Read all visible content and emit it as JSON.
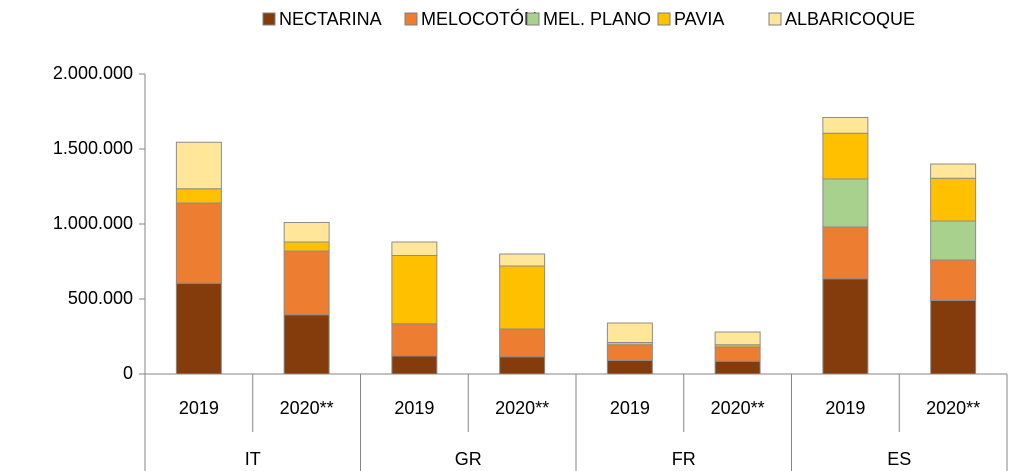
{
  "chart_data": {
    "type": "bar",
    "stacked": true,
    "categories": [
      "2019",
      "2020**",
      "2019",
      "2020**",
      "2019",
      "2020**",
      "2019",
      "2020**"
    ],
    "groups": [
      "IT",
      "GR",
      "FR",
      "ES"
    ],
    "series": [
      {
        "name": "NECTARINA",
        "color": "#843c0c",
        "values": [
          605000,
          395000,
          120000,
          115000,
          90000,
          85000,
          635000,
          490000
        ]
      },
      {
        "name": "MELOCOTÓN",
        "color": "#ed7d31",
        "values": [
          535000,
          425000,
          215000,
          185000,
          105000,
          95000,
          345000,
          270000
        ]
      },
      {
        "name": "MEL. PLANO",
        "color": "#a9d18e",
        "values": [
          0,
          0,
          0,
          0,
          0,
          0,
          320000,
          260000
        ]
      },
      {
        "name": "PAVIA",
        "color": "#ffc000",
        "values": [
          95000,
          60000,
          455000,
          420000,
          15000,
          15000,
          305000,
          285000
        ]
      },
      {
        "name": "ALBARICOQUE",
        "color": "#ffe699",
        "values": [
          310000,
          130000,
          90000,
          80000,
          130000,
          85000,
          105000,
          95000
        ]
      }
    ],
    "ylim": [
      0,
      2000000
    ],
    "yticks": [
      0,
      {
        "value": 500000,
        "label": "500.000"
      },
      {
        "value": 1000000,
        "label": "1.000.000"
      },
      {
        "value": 1500000,
        "label": "1.500.000"
      },
      {
        "value": 2000000,
        "label": "2.000.000"
      }
    ],
    "grid": false,
    "legend": "top"
  }
}
